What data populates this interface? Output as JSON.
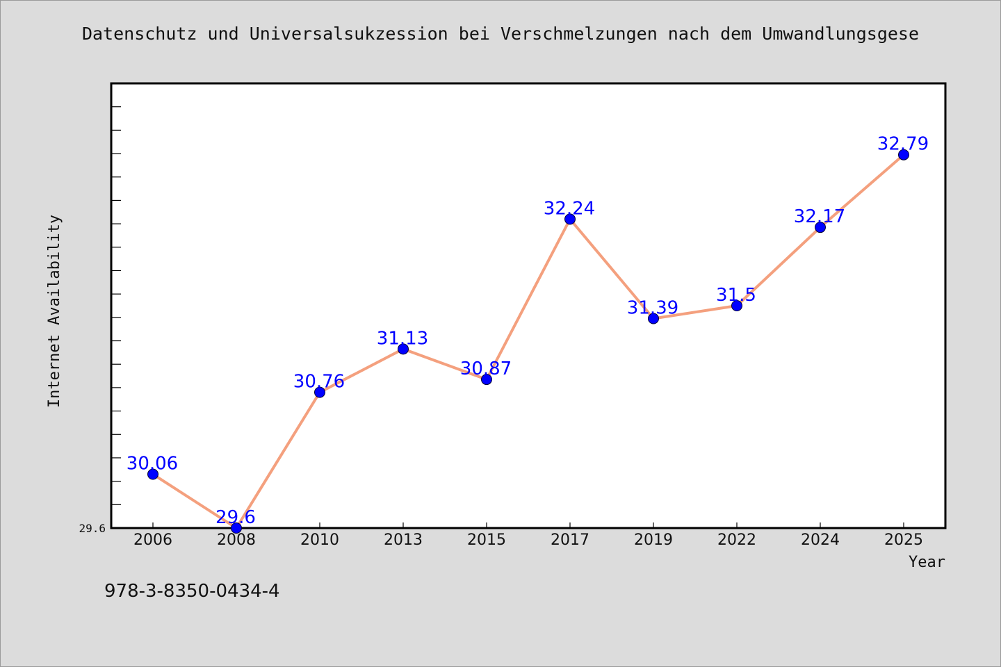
{
  "chart_data": {
    "type": "line",
    "title": "Datenschutz und Universalsukzession bei Verschmelzungen nach dem Umwandlungsgese",
    "xlabel": "Year",
    "ylabel": "Internet Availability",
    "categories": [
      "2006",
      "2008",
      "2010",
      "2013",
      "2015",
      "2017",
      "2019",
      "2022",
      "2024",
      "2025"
    ],
    "values": [
      30.06,
      29.6,
      30.76,
      31.13,
      30.87,
      32.24,
      31.39,
      31.5,
      32.17,
      32.79
    ],
    "data_labels": [
      "30.06",
      "29.6",
      "30.76",
      "31.13",
      "30.87",
      "32.24",
      "31.39",
      "31.5",
      "32.17",
      "32.79"
    ],
    "ylim": [
      29.6,
      33.4
    ],
    "y_tick_label": "29.6",
    "grid": false,
    "line_color": "#f4a07e",
    "marker_color": "#0000ff",
    "label_color": "#0000ff"
  },
  "footer": {
    "isbn": "978-3-8350-0434-4"
  }
}
